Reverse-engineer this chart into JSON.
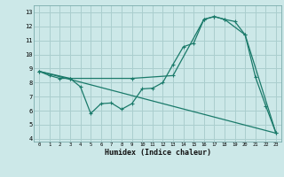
{
  "title": "",
  "xlabel": "Humidex (Indice chaleur)",
  "bg_color": "#cce8e8",
  "grid_color": "#aacece",
  "line_color": "#1a7a6a",
  "xlim": [
    -0.5,
    23.5
  ],
  "ylim": [
    3.8,
    13.5
  ],
  "xticks": [
    0,
    1,
    2,
    3,
    4,
    5,
    6,
    7,
    8,
    9,
    10,
    11,
    12,
    13,
    14,
    15,
    16,
    17,
    18,
    19,
    20,
    21,
    22,
    23
  ],
  "yticks": [
    4,
    5,
    6,
    7,
    8,
    9,
    10,
    11,
    12,
    13
  ],
  "line1_x": [
    0,
    1,
    2,
    3,
    4,
    5,
    6,
    7,
    8,
    9,
    10,
    11,
    12,
    13,
    14,
    15,
    16,
    17,
    18,
    19,
    20,
    21,
    22,
    23
  ],
  "line1_y": [
    8.8,
    8.5,
    8.3,
    8.3,
    7.7,
    5.8,
    6.5,
    6.55,
    6.1,
    6.5,
    7.55,
    7.6,
    8.0,
    9.3,
    10.55,
    10.8,
    12.5,
    12.7,
    12.5,
    12.35,
    11.4,
    8.4,
    6.35,
    4.4
  ],
  "line2_x": [
    0,
    3,
    9,
    13,
    16,
    17,
    18,
    20,
    23
  ],
  "line2_y": [
    8.8,
    8.3,
    8.3,
    8.5,
    12.5,
    12.7,
    12.5,
    11.4,
    4.4
  ],
  "line3_x": [
    0,
    23
  ],
  "line3_y": [
    8.8,
    4.4
  ]
}
